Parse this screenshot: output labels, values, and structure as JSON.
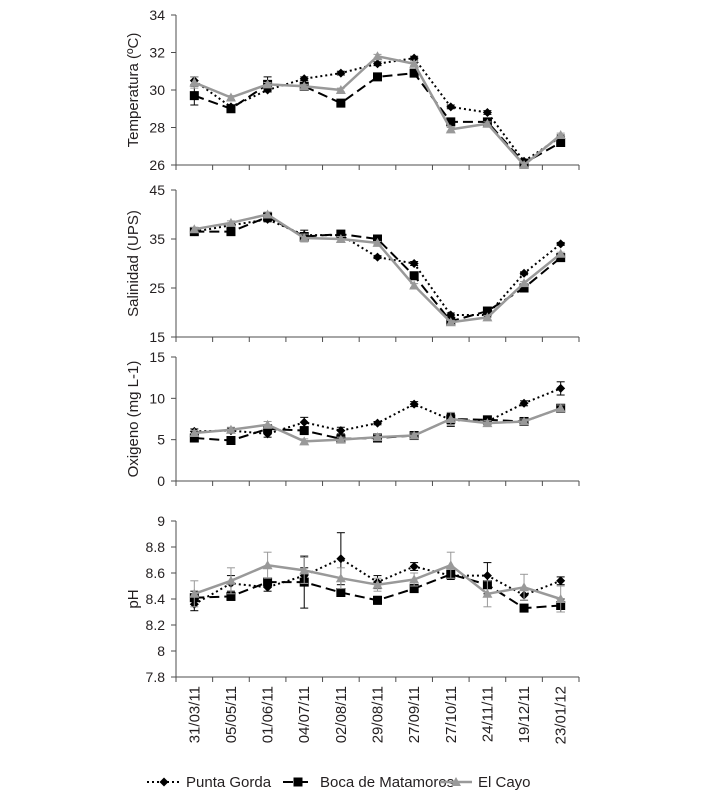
{
  "chart_data": [
    {
      "type": "line",
      "ylabel": "Temperatura (ºC)",
      "ylim": [
        26,
        34
      ],
      "yticks": [
        "26",
        "28",
        "30",
        "32",
        "34"
      ],
      "x_axis_at": 26,
      "error_bars": true,
      "categories": [
        "31/03/11",
        "05/05/11",
        "01/06/11",
        "04/07/11",
        "02/08/11",
        "29/08/11",
        "27/09/11",
        "27/10/11",
        "24/11/11",
        "19/12/11",
        "23/01/12"
      ],
      "series": [
        {
          "name": "Punta Gorda",
          "values": [
            30.5,
            29.1,
            30.0,
            30.6,
            30.9,
            31.4,
            31.7,
            29.1,
            28.8,
            26.2,
            27.5
          ],
          "errors": [
            0.2,
            0.1,
            0.1,
            0.1,
            0.1,
            0.1,
            0.1,
            0.1,
            0.1,
            0.1,
            0.1
          ]
        },
        {
          "name": "Boca de Matamoros",
          "values": [
            29.7,
            29.0,
            30.3,
            30.2,
            29.3,
            30.7,
            30.9,
            28.3,
            28.3,
            26.1,
            27.2
          ],
          "errors": [
            0.5,
            0.1,
            0.4,
            0.1,
            0.1,
            0.1,
            0.1,
            0.1,
            0.1,
            0.1,
            0.1
          ]
        },
        {
          "name": "El Cayo",
          "values": [
            30.4,
            29.6,
            30.3,
            30.2,
            30.0,
            31.8,
            31.4,
            27.9,
            28.2,
            26.0,
            27.6
          ],
          "errors": [
            0.3,
            0.1,
            0.1,
            0.1,
            0.1,
            0.1,
            0.1,
            0.1,
            0.1,
            0.1,
            0.1
          ]
        }
      ]
    },
    {
      "type": "line",
      "ylabel": "Salinidad (UPS)",
      "ylim": [
        15,
        45
      ],
      "yticks": [
        "15",
        "25",
        "35",
        "45"
      ],
      "x_axis_at": 15,
      "error_bars": true,
      "categories": [
        "31/03/11",
        "05/05/11",
        "01/06/11",
        "04/07/11",
        "02/08/11",
        "29/08/11",
        "27/09/11",
        "27/10/11",
        "24/11/11",
        "19/12/11",
        "23/01/12"
      ],
      "series": [
        {
          "name": "Punta Gorda",
          "values": [
            36.5,
            37.8,
            39.0,
            35.8,
            35.8,
            31.3,
            30.0,
            19.5,
            19.5,
            28.0,
            34.0
          ],
          "errors": [
            0.4,
            0.4,
            0.5,
            1.0,
            0.5,
            0.3,
            0.4,
            0.4,
            0.4,
            0.3,
            0.3
          ]
        },
        {
          "name": "Boca de Matamoros",
          "values": [
            36.5,
            36.5,
            39.5,
            35.5,
            36.0,
            35.0,
            27.5,
            18.2,
            20.3,
            25.0,
            31.2
          ],
          "errors": [
            0.4,
            0.4,
            0.5,
            0.8,
            0.5,
            0.3,
            0.4,
            0.4,
            0.4,
            0.3,
            0.3
          ]
        },
        {
          "name": "El Cayo",
          "values": [
            37.0,
            38.3,
            40.0,
            35.2,
            35.0,
            34.2,
            25.5,
            18.0,
            19.0,
            26.0,
            32.0
          ],
          "errors": [
            0.4,
            0.4,
            0.5,
            0.8,
            0.5,
            0.3,
            0.4,
            0.4,
            0.4,
            0.3,
            0.3
          ]
        }
      ]
    },
    {
      "type": "line",
      "ylabel": "Oxigeno (mg L-1)",
      "ylim": [
        0,
        15
      ],
      "yticks": [
        "0",
        "5",
        "10",
        "15"
      ],
      "x_axis_at": 0,
      "error_bars": true,
      "categories": [
        "31/03/11",
        "05/05/11",
        "01/06/11",
        "04/07/11",
        "02/08/11",
        "29/08/11",
        "27/09/11",
        "27/10/11",
        "24/11/11",
        "19/12/11",
        "23/01/12"
      ],
      "series": [
        {
          "name": "Punta Gorda",
          "values": [
            6.0,
            6.1,
            5.7,
            7.1,
            6.1,
            7.0,
            9.3,
            7.4,
            7.2,
            9.4,
            11.2
          ],
          "errors": [
            0.3,
            0.3,
            0.4,
            0.6,
            0.4,
            0.2,
            0.3,
            0.8,
            0.3,
            0.3,
            0.8
          ]
        },
        {
          "name": "Boca de Matamoros",
          "values": [
            5.2,
            4.9,
            6.3,
            6.1,
            5.1,
            5.2,
            5.5,
            7.5,
            7.4,
            7.2,
            8.8
          ],
          "errors": [
            0.3,
            0.2,
            0.4,
            0.4,
            0.3,
            0.3,
            0.3,
            0.6,
            0.3,
            0.3,
            0.4
          ]
        },
        {
          "name": "El Cayo",
          "values": [
            5.8,
            6.2,
            6.8,
            4.8,
            5.0,
            5.3,
            5.5,
            7.5,
            7.0,
            7.2,
            8.8
          ],
          "errors": [
            0.3,
            0.3,
            0.4,
            0.3,
            0.3,
            0.3,
            0.3,
            0.8,
            0.3,
            0.3,
            0.4
          ]
        }
      ]
    },
    {
      "type": "line",
      "ylabel": "pH",
      "ylim": [
        7.8,
        9.0
      ],
      "yticks": [
        "7.8",
        "8",
        "8.2",
        "8.4",
        "8.6",
        "8.8",
        "9"
      ],
      "x_axis_at": 7.8,
      "error_bars": true,
      "categories": [
        "31/03/11",
        "05/05/11",
        "01/06/11",
        "04/07/11",
        "02/08/11",
        "29/08/11",
        "27/09/11",
        "27/10/11",
        "24/11/11",
        "19/12/11",
        "23/01/12"
      ],
      "series": [
        {
          "name": "Punta Gorda",
          "values": [
            8.36,
            8.52,
            8.49,
            8.58,
            8.71,
            8.53,
            8.65,
            8.58,
            8.58,
            8.43,
            8.54
          ],
          "errors": [
            0.05,
            0.06,
            0.03,
            0.06,
            0.2,
            0.05,
            0.03,
            0.03,
            0.1,
            0.04,
            0.03
          ]
        },
        {
          "name": "Boca de Matamoros",
          "values": [
            8.41,
            8.42,
            8.53,
            8.53,
            8.45,
            8.39,
            8.48,
            8.59,
            8.51,
            8.33,
            8.35
          ],
          "errors": [
            0.05,
            0.03,
            0.03,
            0.2,
            0.03,
            0.03,
            0.03,
            0.03,
            0.07,
            0.02,
            0.05
          ]
        },
        {
          "name": "El Cayo",
          "values": [
            8.44,
            8.54,
            8.66,
            8.62,
            8.56,
            8.51,
            8.55,
            8.66,
            8.44,
            8.49,
            8.4
          ],
          "errors": [
            0.1,
            0.1,
            0.1,
            0.1,
            0.08,
            0.05,
            0.05,
            0.1,
            0.1,
            0.1,
            0.1
          ]
        }
      ]
    }
  ],
  "legend": {
    "placement": "bottom",
    "items": [
      {
        "label": "Punta Gorda",
        "line": "dotted",
        "marker": "diamond",
        "color": "#000000"
      },
      {
        "label": "Boca de Matamoros",
        "line": "long-dash",
        "marker": "square",
        "color": "#000000"
      },
      {
        "label": "El Cayo",
        "line": "solid",
        "marker": "triangle",
        "color": "#999999"
      }
    ]
  },
  "colors": {
    "axis": "#4d4d4d",
    "text": "#231f20",
    "black_series": "#000000",
    "gray_series": "#999999"
  }
}
